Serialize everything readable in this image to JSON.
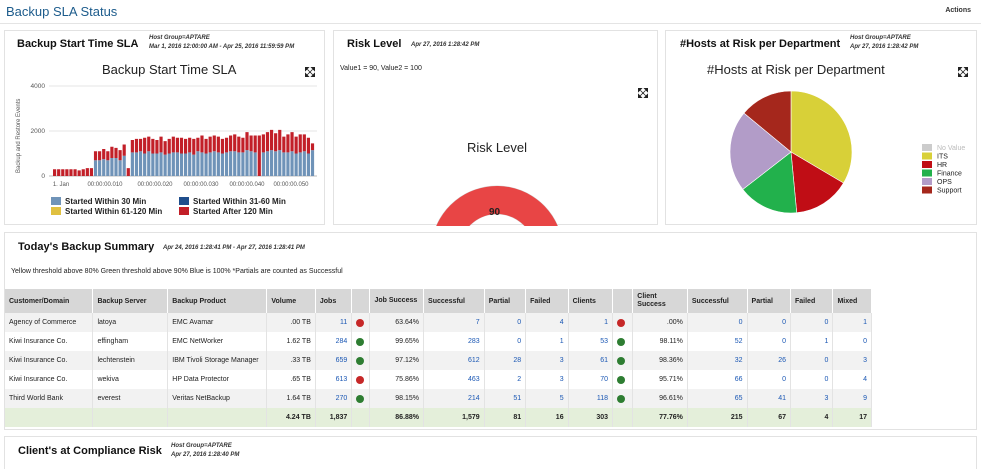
{
  "header": {
    "title": "Backup SLA Status",
    "actions_label": "Actions"
  },
  "panel_backup": {
    "title": "Backup Start Time SLA",
    "meta_line1": "Host Group=APTARE",
    "meta_line2": "Mar 1, 2016 12:00:00 AM - Apr 25, 2016 11:59:59 PM",
    "chart_title": "Backup Start Time SLA",
    "ylabel": "Backup and Restore Events",
    "yticks": [
      "4000",
      "2000",
      "0"
    ],
    "xticks": [
      "1. Jan",
      "00:00:00.010",
      "00:00:00.020",
      "00:00:00.030",
      "00:00:00.040",
      "00:00:00.050"
    ],
    "legend": [
      {
        "label": "Started Within 30 Min",
        "color": "#6f93b8"
      },
      {
        "label": "Started Within 31-60 Min",
        "color": "#1f4e8c"
      },
      {
        "label": "Started Within 61-120 Min",
        "color": "#e0c040"
      },
      {
        "label": "Started After 120 Min",
        "color": "#c21f28"
      }
    ]
  },
  "panel_risk": {
    "title": "Risk Level",
    "meta": "Apr 27, 2016 1:28:42 PM",
    "values_text": "Value1 = 90, Value2 = 100",
    "gauge_title": "Risk Level",
    "gauge_value": "90",
    "gauge_fraction": 0.9,
    "gauge_color": "#e84545"
  },
  "panel_hosts": {
    "title": "#Hosts at Risk per Department",
    "meta_line1": "Host Group=APTARE",
    "meta_line2": "Apr 27, 2016 1:28:42 PM",
    "chart_title": "#Hosts at Risk per Department"
  },
  "summary": {
    "title": "Today's Backup Summary",
    "meta": "Apr 24, 2016 1:28:41 PM - Apr 27, 2016 1:28:41 PM",
    "note": "Yellow threshold above 80% Green threshold above 90% Blue is 100% *Partials are counted as Successful",
    "columns": [
      "Customer/Domain",
      "Backup Server",
      "Backup Product",
      "Volume",
      "Jobs",
      "",
      "Job Success",
      "Successful",
      "Partial",
      "Failed",
      "Clients",
      "",
      "Client Success",
      "Successful",
      "Partial",
      "Failed",
      "Mixed"
    ],
    "rows": [
      {
        "customer": "Agency of Commerce",
        "server": "latoya",
        "product": "EMC Avamar",
        "volume": ".00 TB",
        "jobs": "11",
        "job_status": "r",
        "job_success": "63.64%",
        "successful": "7",
        "partial": "0",
        "failed": "4",
        "clients": "1",
        "client_status": "r",
        "client_success": ".00%",
        "c_successful": "0",
        "c_partial": "0",
        "c_failed": "0",
        "c_mixed": "1"
      },
      {
        "customer": "Kiwi Insurance Co.",
        "server": "effingham",
        "product": "EMC NetWorker",
        "volume": "1.62 TB",
        "jobs": "284",
        "job_status": "g",
        "job_success": "99.65%",
        "successful": "283",
        "partial": "0",
        "failed": "1",
        "clients": "53",
        "client_status": "g",
        "client_success": "98.11%",
        "c_successful": "52",
        "c_partial": "0",
        "c_failed": "1",
        "c_mixed": "0"
      },
      {
        "customer": "Kiwi Insurance Co.",
        "server": "lechtenstein",
        "product": "IBM Tivoli Storage Manager",
        "volume": ".33 TB",
        "jobs": "659",
        "job_status": "g",
        "job_success": "97.12%",
        "successful": "612",
        "partial": "28",
        "failed": "3",
        "clients": "61",
        "client_status": "g",
        "client_success": "98.36%",
        "c_successful": "32",
        "c_partial": "26",
        "c_failed": "0",
        "c_mixed": "3"
      },
      {
        "customer": "Kiwi Insurance Co.",
        "server": "wekiva",
        "product": "HP Data Protector",
        "volume": ".65 TB",
        "jobs": "613",
        "job_status": "r",
        "job_success": "75.86%",
        "successful": "463",
        "partial": "2",
        "failed": "3",
        "clients": "70",
        "client_status": "g",
        "client_success": "95.71%",
        "c_successful": "66",
        "c_partial": "0",
        "c_failed": "0",
        "c_mixed": "4"
      },
      {
        "customer": "Third World Bank",
        "server": "everest",
        "product": "Veritas NetBackup",
        "volume": "1.64 TB",
        "jobs": "270",
        "job_status": "g",
        "job_success": "98.15%",
        "successful": "214",
        "partial": "51",
        "failed": "5",
        "clients": "118",
        "client_status": "g",
        "client_success": "96.61%",
        "c_successful": "65",
        "c_partial": "41",
        "c_failed": "3",
        "c_mixed": "9"
      }
    ],
    "totals": {
      "volume": "4.24 TB",
      "jobs": "1,837",
      "job_success": "86.88%",
      "successful": "1,579",
      "partial": "81",
      "failed": "16",
      "clients": "303",
      "client_success": "77.76%",
      "c_successful": "215",
      "c_partial": "67",
      "c_failed": "4",
      "c_mixed": "17"
    }
  },
  "compliance": {
    "title": "Client's at Compliance Risk",
    "meta_line1": "Host Group=APTARE",
    "meta_line2": "Apr 27, 2016 1:28:40 PM"
  },
  "chart_data": [
    {
      "type": "bar",
      "title": "Backup Start Time SLA",
      "ylabel": "Backup and Restore Events",
      "ylim": [
        0,
        4000
      ],
      "legend": "bottom",
      "series": [
        {
          "name": "Started Within 30 Min",
          "values": [
            0,
            0,
            0,
            0,
            0,
            0,
            0,
            0,
            0,
            0,
            700,
            700,
            750,
            700,
            800,
            800,
            700,
            900,
            0,
            1050,
            1050,
            1100,
            1000,
            1100,
            1000,
            1000,
            1050,
            950,
            1000,
            1050,
            1050,
            1000,
            1000,
            1050,
            950,
            1100,
            1050,
            1000,
            1050,
            1100,
            1050,
            1000,
            1050,
            1100,
            1100,
            1050,
            1050,
            1150,
            1100,
            1050,
            0,
            1050,
            1100,
            1150,
            1100,
            1150,
            1050,
            1050,
            1100,
            1000,
            1050,
            1100,
            1000,
            1150
          ]
        },
        {
          "name": "Started Within 31-60 Min",
          "values": [
            0,
            0,
            0,
            0,
            0,
            0,
            0,
            0,
            0,
            0,
            0,
            0,
            0,
            0,
            0,
            0,
            0,
            0,
            0,
            0,
            0,
            0,
            0,
            0,
            0,
            0,
            0,
            0,
            0,
            0,
            0,
            0,
            0,
            0,
            0,
            0,
            0,
            0,
            0,
            0,
            0,
            0,
            0,
            0,
            0,
            0,
            0,
            0,
            0,
            0,
            0,
            0,
            0,
            0,
            0,
            0,
            0,
            0,
            0,
            0,
            0,
            0,
            0,
            0
          ]
        },
        {
          "name": "Started Within 61-120 Min",
          "values": [
            0,
            0,
            0,
            0,
            0,
            0,
            0,
            0,
            0,
            0,
            0,
            0,
            0,
            0,
            0,
            0,
            0,
            0,
            0,
            0,
            0,
            0,
            0,
            0,
            0,
            0,
            0,
            0,
            0,
            0,
            0,
            0,
            0,
            0,
            0,
            0,
            0,
            0,
            0,
            0,
            0,
            0,
            0,
            0,
            0,
            0,
            0,
            0,
            0,
            0,
            0,
            0,
            0,
            0,
            0,
            0,
            0,
            0,
            0,
            0,
            0,
            0,
            0,
            0
          ]
        },
        {
          "name": "Started After 120 Min",
          "values": [
            300,
            300,
            300,
            300,
            300,
            300,
            250,
            300,
            350,
            350,
            400,
            400,
            450,
            400,
            500,
            450,
            450,
            500,
            350,
            550,
            600,
            550,
            700,
            650,
            650,
            600,
            700,
            600,
            650,
            700,
            650,
            700,
            650,
            650,
            700,
            600,
            750,
            650,
            700,
            700,
            700,
            650,
            650,
            700,
            750,
            700,
            650,
            800,
            700,
            750,
            1800,
            800,
            850,
            900,
            800,
            900,
            700,
            800,
            850,
            750,
            800,
            750,
            700,
            300
          ]
        }
      ]
    },
    {
      "type": "pie",
      "title": "#Hosts at Risk per Department",
      "legend": "right",
      "categories": [
        "No Value",
        "ITS",
        "HR",
        "Finance",
        "OPS",
        "Support"
      ],
      "values": [
        0,
        33.5,
        15,
        16,
        21.5,
        14
      ],
      "colors": [
        "#cccccc",
        "#d8d038",
        "#c00d15",
        "#22b14c",
        "#b29cc8",
        "#a5271c"
      ]
    }
  ]
}
